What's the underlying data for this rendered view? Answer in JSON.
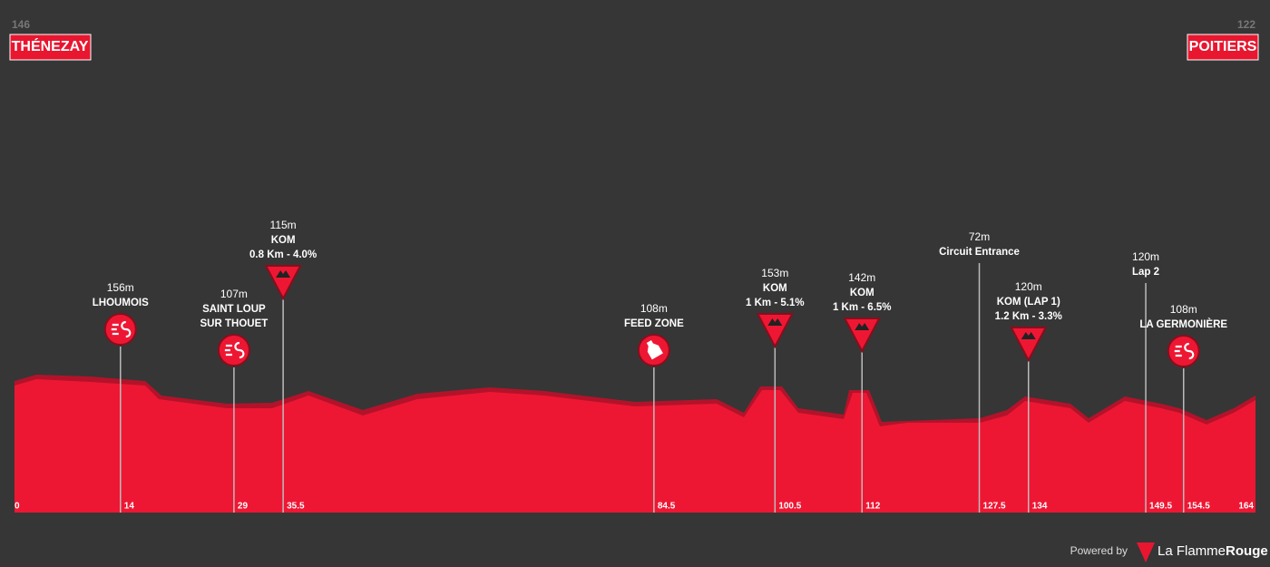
{
  "start": {
    "code": "146",
    "name": "THÉNEZAY"
  },
  "finish": {
    "code": "122",
    "name": "POITIERS"
  },
  "km_range": [
    0,
    164
  ],
  "km_ticks": [
    0,
    14,
    29,
    35.5,
    84.5,
    100.5,
    112,
    127.5,
    134,
    149.5,
    154.5,
    164
  ],
  "points": [
    {
      "km": 14,
      "altitude": "156m",
      "lines": [
        "LHOUMOIS"
      ],
      "icon": "sprint"
    },
    {
      "km": 29,
      "altitude": "107m",
      "lines": [
        "SAINT LOUP",
        "SUR THOUET"
      ],
      "icon": "sprint"
    },
    {
      "km": 35.5,
      "altitude": "115m",
      "lines": [
        "KOM",
        "0.8 Km - 4.0%"
      ],
      "icon": "kom"
    },
    {
      "km": 84.5,
      "altitude": "108m",
      "lines": [
        "FEED ZONE"
      ],
      "icon": "feed"
    },
    {
      "km": 100.5,
      "altitude": "153m",
      "lines": [
        "KOM",
        "1 Km - 5.1%"
      ],
      "icon": "kom"
    },
    {
      "km": 112,
      "altitude": "142m",
      "lines": [
        "KOM",
        "1 Km - 6.5%"
      ],
      "icon": "kom"
    },
    {
      "km": 127.5,
      "altitude": "72m",
      "lines": [
        "Circuit Entrance"
      ],
      "icon": "none"
    },
    {
      "km": 134,
      "altitude": "120m",
      "lines": [
        "KOM (LAP 1)",
        "1.2 Km - 3.3%"
      ],
      "icon": "kom"
    },
    {
      "km": 149.5,
      "altitude": "120m",
      "lines": [
        "Lap 2"
      ],
      "icon": "none"
    },
    {
      "km": 154.5,
      "altitude": "108m",
      "lines": [
        "LA GERMONIÈRE"
      ],
      "icon": "sprint"
    }
  ],
  "footer": {
    "powered": "Powered by",
    "brand1": "La Flamme",
    "brand2": "Rouge"
  }
}
